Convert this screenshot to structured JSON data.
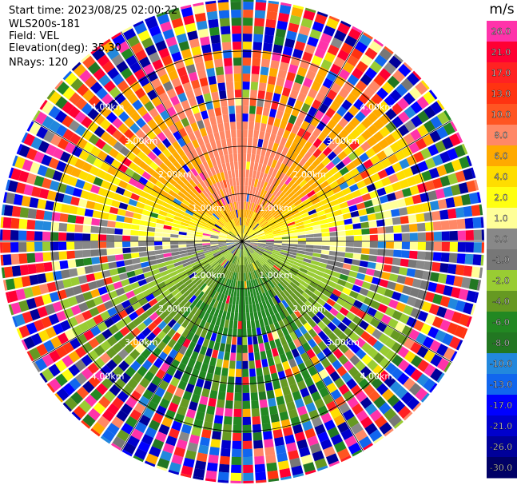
{
  "info": {
    "start_time": "Start time: 2023/08/25 02:00:22",
    "site": "WLS200s-181",
    "field": "Field: VEL",
    "elevation": "Elevation(deg): 35.30",
    "nrays": "NRays: 120"
  },
  "colorbar": {
    "unit": "m/s",
    "labels": [
      "26.0",
      "21.0",
      "17.0",
      "13.0",
      "10.0",
      "8.0",
      "6.0",
      "4.0",
      "2.0",
      "1.0",
      "0.0",
      "-1.0",
      "-2.0",
      "-4.0",
      "-6.0",
      "-8.0",
      "-10.0",
      "-13.0",
      "-17.0",
      "-21.0",
      "-26.0",
      "-30.0"
    ],
    "colors": [
      "#ff33aa",
      "#ff0033",
      "#ff2222",
      "#ff3311",
      "#ff5522",
      "#ff8866",
      "#ffaa00",
      "#ffdd00",
      "#ffff11",
      "#ffff99",
      "#888888",
      "#777777",
      "#99cc33",
      "#669922",
      "#228822",
      "#227722",
      "#2288dd",
      "#1166ee",
      "#0000ff",
      "#0000cc",
      "#000099",
      "#000066"
    ]
  },
  "range_rings": {
    "labels": [
      "1.00km",
      "2.00km",
      "3.00km",
      "4.00km"
    ]
  },
  "chart_data": {
    "type": "heatmap",
    "title": "",
    "projection": "polar PPI",
    "field": "VEL",
    "unit": "m/s",
    "nrays": 120,
    "elevation_deg": 35.3,
    "range_rings_km": [
      1,
      2,
      3,
      4
    ],
    "vmin": -30,
    "vmax": 26,
    "clean_range_km": 4.0,
    "noise_beyond_km": 4.0,
    "max_range_km": 5.0,
    "pattern": "Positive velocities (yellow/orange, up to ~8 m/s) to the north, ~0 m/s (grey) along the east-west axis, negative velocities (green to blue, down to ~ -10 m/s) to the south; random noise beyond ~4 km."
  }
}
